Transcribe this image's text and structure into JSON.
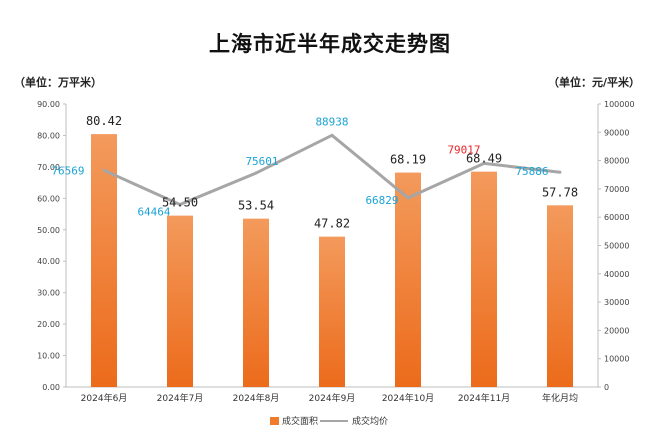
{
  "chart_data": {
    "type": "bar",
    "title": "上海市近半年成交走势图",
    "left_unit": "（单位：万平米）",
    "right_unit": "（单位：元/平米）",
    "categories": [
      "2024年6月",
      "2024年7月",
      "2024年8月",
      "2024年9月",
      "2024年10月",
      "2024年11月",
      "年化月均"
    ],
    "y_left": {
      "min": 0,
      "max": 90,
      "step": 10,
      "decimals": 2
    },
    "y_right": {
      "min": 0,
      "max": 100000,
      "step": 10000,
      "decimals": 0
    },
    "series": [
      {
        "name": "成交面积",
        "type": "bar",
        "axis": "left",
        "color": "#F07B2C",
        "values": [
          80.42,
          54.5,
          53.54,
          47.82,
          68.19,
          68.49,
          57.78
        ],
        "labels": [
          "80.42",
          "54.50",
          "53.54",
          "47.82",
          "68.19",
          "68.49",
          "57.78"
        ]
      },
      {
        "name": "成交均价",
        "type": "line",
        "axis": "right",
        "color": "#A6A6A6",
        "values": [
          76569,
          64464,
          75601,
          88938,
          66829,
          79017,
          75886
        ],
        "labels": [
          "76569",
          "64464",
          "75601",
          "88938",
          "66829",
          "79017",
          "75886"
        ],
        "label_colors": [
          "#1BA3D6",
          "#1BA3D6",
          "#1BA3D6",
          "#1BA3D6",
          "#1BA3D6",
          "#E8262A",
          "#1BA3D6"
        ]
      }
    ],
    "legend": "bottom-center",
    "grid": false
  }
}
